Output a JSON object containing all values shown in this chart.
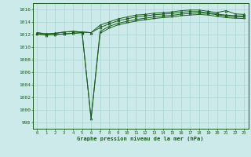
{
  "title": "Graphe pression niveau de la mer (hPa)",
  "x_labels": [
    "0",
    "1",
    "2",
    "3",
    "4",
    "5",
    "6",
    "7",
    "8",
    "9",
    "10",
    "11",
    "12",
    "13",
    "14",
    "15",
    "16",
    "17",
    "18",
    "19",
    "20",
    "21",
    "22",
    "23"
  ],
  "ylim": [
    997,
    1017
  ],
  "yticks": [
    998,
    1000,
    1002,
    1004,
    1006,
    1008,
    1010,
    1012,
    1014,
    1016
  ],
  "background_color": "#cceaea",
  "grid_color": "#aad4d4",
  "line_color": "#1a5c1a",
  "marker_color": "#1a5c1a",
  "series1": [
    1012.3,
    1012.1,
    1012.2,
    1012.4,
    1012.5,
    1012.4,
    1012.3,
    1013.5,
    1014.0,
    1014.5,
    1014.8,
    1015.1,
    1015.2,
    1015.4,
    1015.5,
    1015.6,
    1015.8,
    1015.9,
    1015.9,
    1015.7,
    1015.5,
    1015.8,
    1015.3,
    1015.2
  ],
  "series1b": [
    1012.3,
    1012.1,
    1012.2,
    1012.4,
    1012.5,
    1012.4,
    1012.3,
    1013.1,
    1013.7,
    1014.2,
    1014.5,
    1014.8,
    1014.95,
    1015.15,
    1015.25,
    1015.35,
    1015.55,
    1015.65,
    1015.65,
    1015.45,
    1015.25,
    1015.1,
    1015.0,
    1014.95
  ],
  "series2": [
    1012.1,
    1011.9,
    1012.0,
    1012.1,
    1012.2,
    1012.3,
    998.6,
    1012.5,
    1013.3,
    1013.8,
    1014.1,
    1014.4,
    1014.6,
    1014.8,
    1014.95,
    1015.05,
    1015.25,
    1015.35,
    1015.45,
    1015.35,
    1015.15,
    1014.95,
    1014.85,
    1014.8
  ],
  "series2b": [
    1012.1,
    1011.9,
    1012.0,
    1012.1,
    1012.2,
    1012.3,
    998.6,
    1012.2,
    1013.0,
    1013.55,
    1013.85,
    1014.15,
    1014.35,
    1014.55,
    1014.7,
    1014.8,
    1015.0,
    1015.1,
    1015.2,
    1015.1,
    1014.9,
    1014.7,
    1014.6,
    1014.55
  ]
}
